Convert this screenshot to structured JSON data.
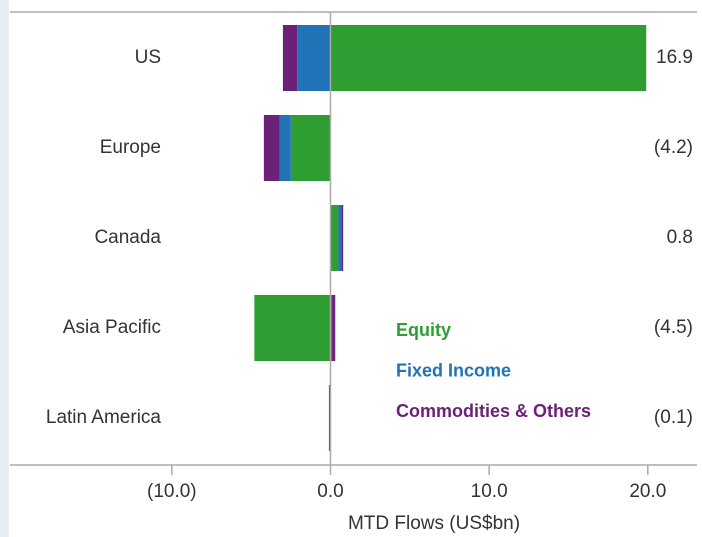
{
  "chart_data": {
    "type": "bar",
    "orientation": "horizontal",
    "stacked": true,
    "categories": [
      "US",
      "Europe",
      "Canada",
      "Asia Pacific",
      "Latin America"
    ],
    "series": [
      {
        "name": "Equity",
        "color": "#2e9e32",
        "values": [
          19.9,
          -2.5,
          0.5,
          -4.8,
          -0.05
        ]
      },
      {
        "name": "Fixed Income",
        "color": "#2172b7",
        "values": [
          -2.1,
          -0.7,
          0.2,
          0.1,
          0.0
        ]
      },
      {
        "name": "Commodities & Others",
        "color": "#6b2177",
        "values": [
          -0.9,
          -1.0,
          0.1,
          0.2,
          -0.05
        ]
      }
    ],
    "totals": {
      "values": [
        16.9,
        -4.2,
        0.8,
        -4.5,
        -0.1
      ],
      "value_labels": [
        "16.9",
        "(4.2)",
        "0.8",
        "(4.5)",
        "(0.1)"
      ]
    },
    "xlabel": "MTD Flows (US$bn)",
    "xlim": [
      -20.2,
      23.1
    ],
    "xticks": [
      {
        "value": -10,
        "label": "(10.0)"
      },
      {
        "value": 0,
        "label": "0.0"
      },
      {
        "value": 10,
        "label": "10.0"
      },
      {
        "value": 20,
        "label": "20.0"
      }
    ]
  }
}
